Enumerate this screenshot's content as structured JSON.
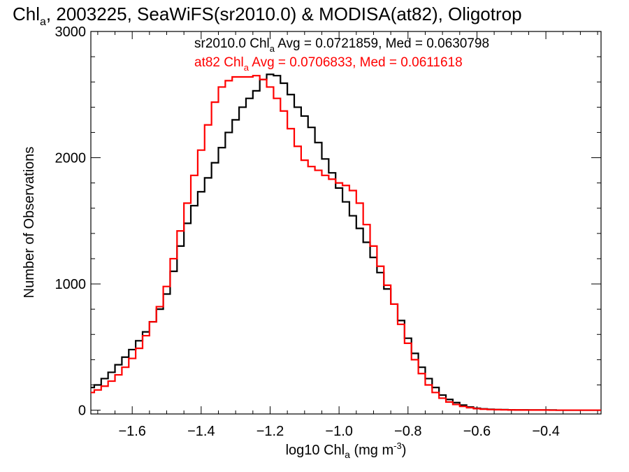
{
  "chart_data": {
    "type": "line",
    "title": {
      "prefix": "Chl",
      "sub": "a",
      "rest": ", 2003225, SeaWiFS(sr2010.0) & MODISA(at82), Oligotrop"
    },
    "xlabel": {
      "prefix": "log10 Chl",
      "sub": "a",
      "mid": " (mg m",
      "sup": "-3",
      "suffix": ")"
    },
    "ylabel": "Number of Observations",
    "xlim": [
      -1.72,
      -0.24
    ],
    "ylim": [
      -30,
      3000
    ],
    "x_ticks": [
      -1.6,
      -1.4,
      -1.2,
      -1.0,
      -0.8,
      -0.6,
      -0.4
    ],
    "x_tick_labels": [
      "−1.6",
      "−1.4",
      "−1.2",
      "−1.0",
      "−0.8",
      "−0.6",
      "−0.4"
    ],
    "y_ticks": [
      0,
      1000,
      2000,
      3000
    ],
    "y_tick_labels": [
      "0",
      "1000",
      "2000",
      "3000"
    ],
    "grid": false,
    "series": [
      {
        "name": "sr2010.0",
        "color": "#000000",
        "stat": {
          "prefix": "sr2010.0 Chl",
          "sub": "a",
          "rest": " Avg = 0.0721859, Med = 0.0630798"
        },
        "points": [
          [
            -1.72,
            180
          ],
          [
            -1.7,
            200
          ],
          [
            -1.68,
            250
          ],
          [
            -1.66,
            300
          ],
          [
            -1.64,
            360
          ],
          [
            -1.62,
            420
          ],
          [
            -1.6,
            480
          ],
          [
            -1.58,
            550
          ],
          [
            -1.56,
            620
          ],
          [
            -1.54,
            700
          ],
          [
            -1.52,
            800
          ],
          [
            -1.5,
            920
          ],
          [
            -1.48,
            1100
          ],
          [
            -1.46,
            1300
          ],
          [
            -1.44,
            1480
          ],
          [
            -1.42,
            1620
          ],
          [
            -1.4,
            1730
          ],
          [
            -1.38,
            1840
          ],
          [
            -1.36,
            1960
          ],
          [
            -1.34,
            2080
          ],
          [
            -1.32,
            2200
          ],
          [
            -1.3,
            2300
          ],
          [
            -1.28,
            2400
          ],
          [
            -1.26,
            2470
          ],
          [
            -1.24,
            2530
          ],
          [
            -1.22,
            2620
          ],
          [
            -1.2,
            2660
          ],
          [
            -1.18,
            2650
          ],
          [
            -1.16,
            2590
          ],
          [
            -1.14,
            2500
          ],
          [
            -1.12,
            2400
          ],
          [
            -1.1,
            2330
          ],
          [
            -1.08,
            2240
          ],
          [
            -1.06,
            2120
          ],
          [
            -1.04,
            1990
          ],
          [
            -1.02,
            1880
          ],
          [
            -1.0,
            1760
          ],
          [
            -0.98,
            1650
          ],
          [
            -0.96,
            1540
          ],
          [
            -0.94,
            1440
          ],
          [
            -0.92,
            1330
          ],
          [
            -0.9,
            1210
          ],
          [
            -0.88,
            1090
          ],
          [
            -0.86,
            960
          ],
          [
            -0.84,
            840
          ],
          [
            -0.82,
            710
          ],
          [
            -0.8,
            570
          ],
          [
            -0.78,
            450
          ],
          [
            -0.76,
            340
          ],
          [
            -0.74,
            250
          ],
          [
            -0.72,
            180
          ],
          [
            -0.7,
            120
          ],
          [
            -0.68,
            85
          ],
          [
            -0.66,
            60
          ],
          [
            -0.64,
            40
          ],
          [
            -0.62,
            25
          ],
          [
            -0.6,
            15
          ],
          [
            -0.58,
            10
          ],
          [
            -0.56,
            7
          ],
          [
            -0.54,
            5
          ],
          [
            -0.52,
            4
          ],
          [
            -0.5,
            3
          ],
          [
            -0.48,
            2
          ],
          [
            -0.46,
            2
          ],
          [
            -0.44,
            1
          ],
          [
            -0.42,
            1
          ],
          [
            -0.4,
            1
          ],
          [
            -0.38,
            1
          ],
          [
            -0.36,
            0
          ],
          [
            -0.34,
            0
          ],
          [
            -0.32,
            0
          ],
          [
            -0.3,
            0
          ],
          [
            -0.28,
            0
          ],
          [
            -0.26,
            0
          ],
          [
            -0.24,
            0
          ]
        ]
      },
      {
        "name": "at82",
        "color": "#ff0000",
        "stat": {
          "prefix": "at82 Chl",
          "sub": "a",
          "rest": " Avg = 0.0706833, Med = 0.0611618"
        },
        "points": [
          [
            -1.72,
            140
          ],
          [
            -1.7,
            160
          ],
          [
            -1.68,
            190
          ],
          [
            -1.66,
            230
          ],
          [
            -1.64,
            280
          ],
          [
            -1.62,
            340
          ],
          [
            -1.6,
            410
          ],
          [
            -1.58,
            490
          ],
          [
            -1.56,
            590
          ],
          [
            -1.54,
            700
          ],
          [
            -1.52,
            820
          ],
          [
            -1.5,
            980
          ],
          [
            -1.48,
            1200
          ],
          [
            -1.46,
            1420
          ],
          [
            -1.44,
            1640
          ],
          [
            -1.42,
            1860
          ],
          [
            -1.4,
            2060
          ],
          [
            -1.38,
            2260
          ],
          [
            -1.36,
            2440
          ],
          [
            -1.34,
            2560
          ],
          [
            -1.32,
            2610
          ],
          [
            -1.3,
            2640
          ],
          [
            -1.28,
            2640
          ],
          [
            -1.26,
            2640
          ],
          [
            -1.24,
            2650
          ],
          [
            -1.22,
            2620
          ],
          [
            -1.2,
            2560
          ],
          [
            -1.18,
            2470
          ],
          [
            -1.16,
            2370
          ],
          [
            -1.14,
            2230
          ],
          [
            -1.12,
            2090
          ],
          [
            -1.1,
            1980
          ],
          [
            -1.08,
            1930
          ],
          [
            -1.06,
            1900
          ],
          [
            -1.04,
            1860
          ],
          [
            -1.02,
            1830
          ],
          [
            -1.0,
            1800
          ],
          [
            -0.98,
            1780
          ],
          [
            -0.96,
            1740
          ],
          [
            -0.94,
            1640
          ],
          [
            -0.92,
            1470
          ],
          [
            -0.9,
            1300
          ],
          [
            -0.88,
            1140
          ],
          [
            -0.86,
            990
          ],
          [
            -0.84,
            840
          ],
          [
            -0.82,
            680
          ],
          [
            -0.8,
            530
          ],
          [
            -0.78,
            400
          ],
          [
            -0.76,
            290
          ],
          [
            -0.74,
            200
          ],
          [
            -0.72,
            140
          ],
          [
            -0.7,
            95
          ],
          [
            -0.68,
            65
          ],
          [
            -0.66,
            45
          ],
          [
            -0.64,
            30
          ],
          [
            -0.62,
            20
          ],
          [
            -0.6,
            12
          ],
          [
            -0.58,
            8
          ],
          [
            -0.56,
            5
          ],
          [
            -0.54,
            4
          ],
          [
            -0.52,
            3
          ],
          [
            -0.5,
            2
          ],
          [
            -0.48,
            2
          ],
          [
            -0.46,
            1
          ],
          [
            -0.44,
            1
          ],
          [
            -0.42,
            1
          ],
          [
            -0.4,
            1
          ],
          [
            -0.38,
            0
          ],
          [
            -0.36,
            0
          ],
          [
            -0.34,
            0
          ],
          [
            -0.32,
            0
          ],
          [
            -0.3,
            0
          ],
          [
            -0.28,
            0
          ],
          [
            -0.26,
            0
          ],
          [
            -0.24,
            0
          ]
        ]
      }
    ]
  }
}
